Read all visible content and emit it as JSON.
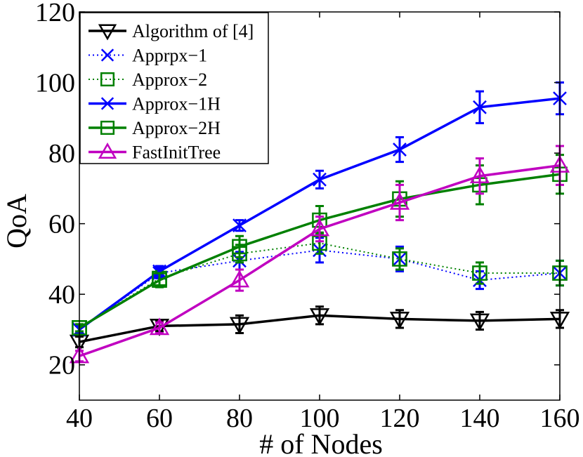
{
  "chart_data": {
    "type": "line",
    "title": "",
    "xlabel": "# of Nodes",
    "ylabel": "QoA",
    "x": [
      40,
      60,
      80,
      100,
      120,
      140,
      160
    ],
    "xlim": [
      40,
      160
    ],
    "ylim": [
      10,
      120
    ],
    "xticks": [
      "40",
      "60",
      "80",
      "100",
      "120",
      "140",
      "160"
    ],
    "yticks": [
      "20",
      "40",
      "60",
      "80",
      "100",
      "120"
    ],
    "grid": false,
    "legend_position": "top-left",
    "series": [
      {
        "name": "Algorithm of [4]",
        "color": "#000000",
        "line_style": "solid",
        "marker": "triangle-down",
        "values": [
          26.5,
          31,
          31.5,
          34,
          33,
          32.5,
          33
        ],
        "errors": [
          1.5,
          1.5,
          2.5,
          2.5,
          2.5,
          2.5,
          2.5
        ]
      },
      {
        "name": "Apprpx−1",
        "color": "#0000ff",
        "line_style": "dotted",
        "marker": "x",
        "values": [
          30,
          46,
          49.5,
          52.5,
          50,
          44,
          46
        ],
        "errors": [
          1,
          1.5,
          2.5,
          3.5,
          3.5,
          2.5,
          3.5
        ]
      },
      {
        "name": "Approx−2",
        "color": "#008000",
        "line_style": "dotted",
        "marker": "square",
        "values": [
          30.5,
          44.5,
          51.5,
          54.5,
          50,
          46,
          46
        ],
        "errors": [
          1,
          2,
          2.5,
          3,
          3,
          3,
          3.5
        ]
      },
      {
        "name": "Approx−1H",
        "color": "#0000ff",
        "line_style": "solid",
        "marker": "x",
        "values": [
          30,
          46.5,
          59.5,
          72.5,
          81,
          93,
          95.5
        ],
        "errors": [
          1,
          1.5,
          1.5,
          2.5,
          3.5,
          4.5,
          4.5
        ]
      },
      {
        "name": "Approx−2H",
        "color": "#008000",
        "line_style": "solid",
        "marker": "square",
        "values": [
          30.5,
          44,
          53.5,
          61,
          67,
          71,
          74
        ],
        "errors": [
          1,
          2,
          3,
          4,
          5,
          5.5,
          5.5
        ]
      },
      {
        "name": "FastInitTree",
        "color": "#c000c0",
        "line_style": "solid",
        "marker": "triangle-up",
        "values": [
          22.5,
          30.5,
          44,
          58.5,
          66,
          73.5,
          76.5
        ],
        "errors": [
          1.5,
          1.5,
          3,
          3.5,
          5,
          5,
          5.5
        ]
      }
    ]
  }
}
